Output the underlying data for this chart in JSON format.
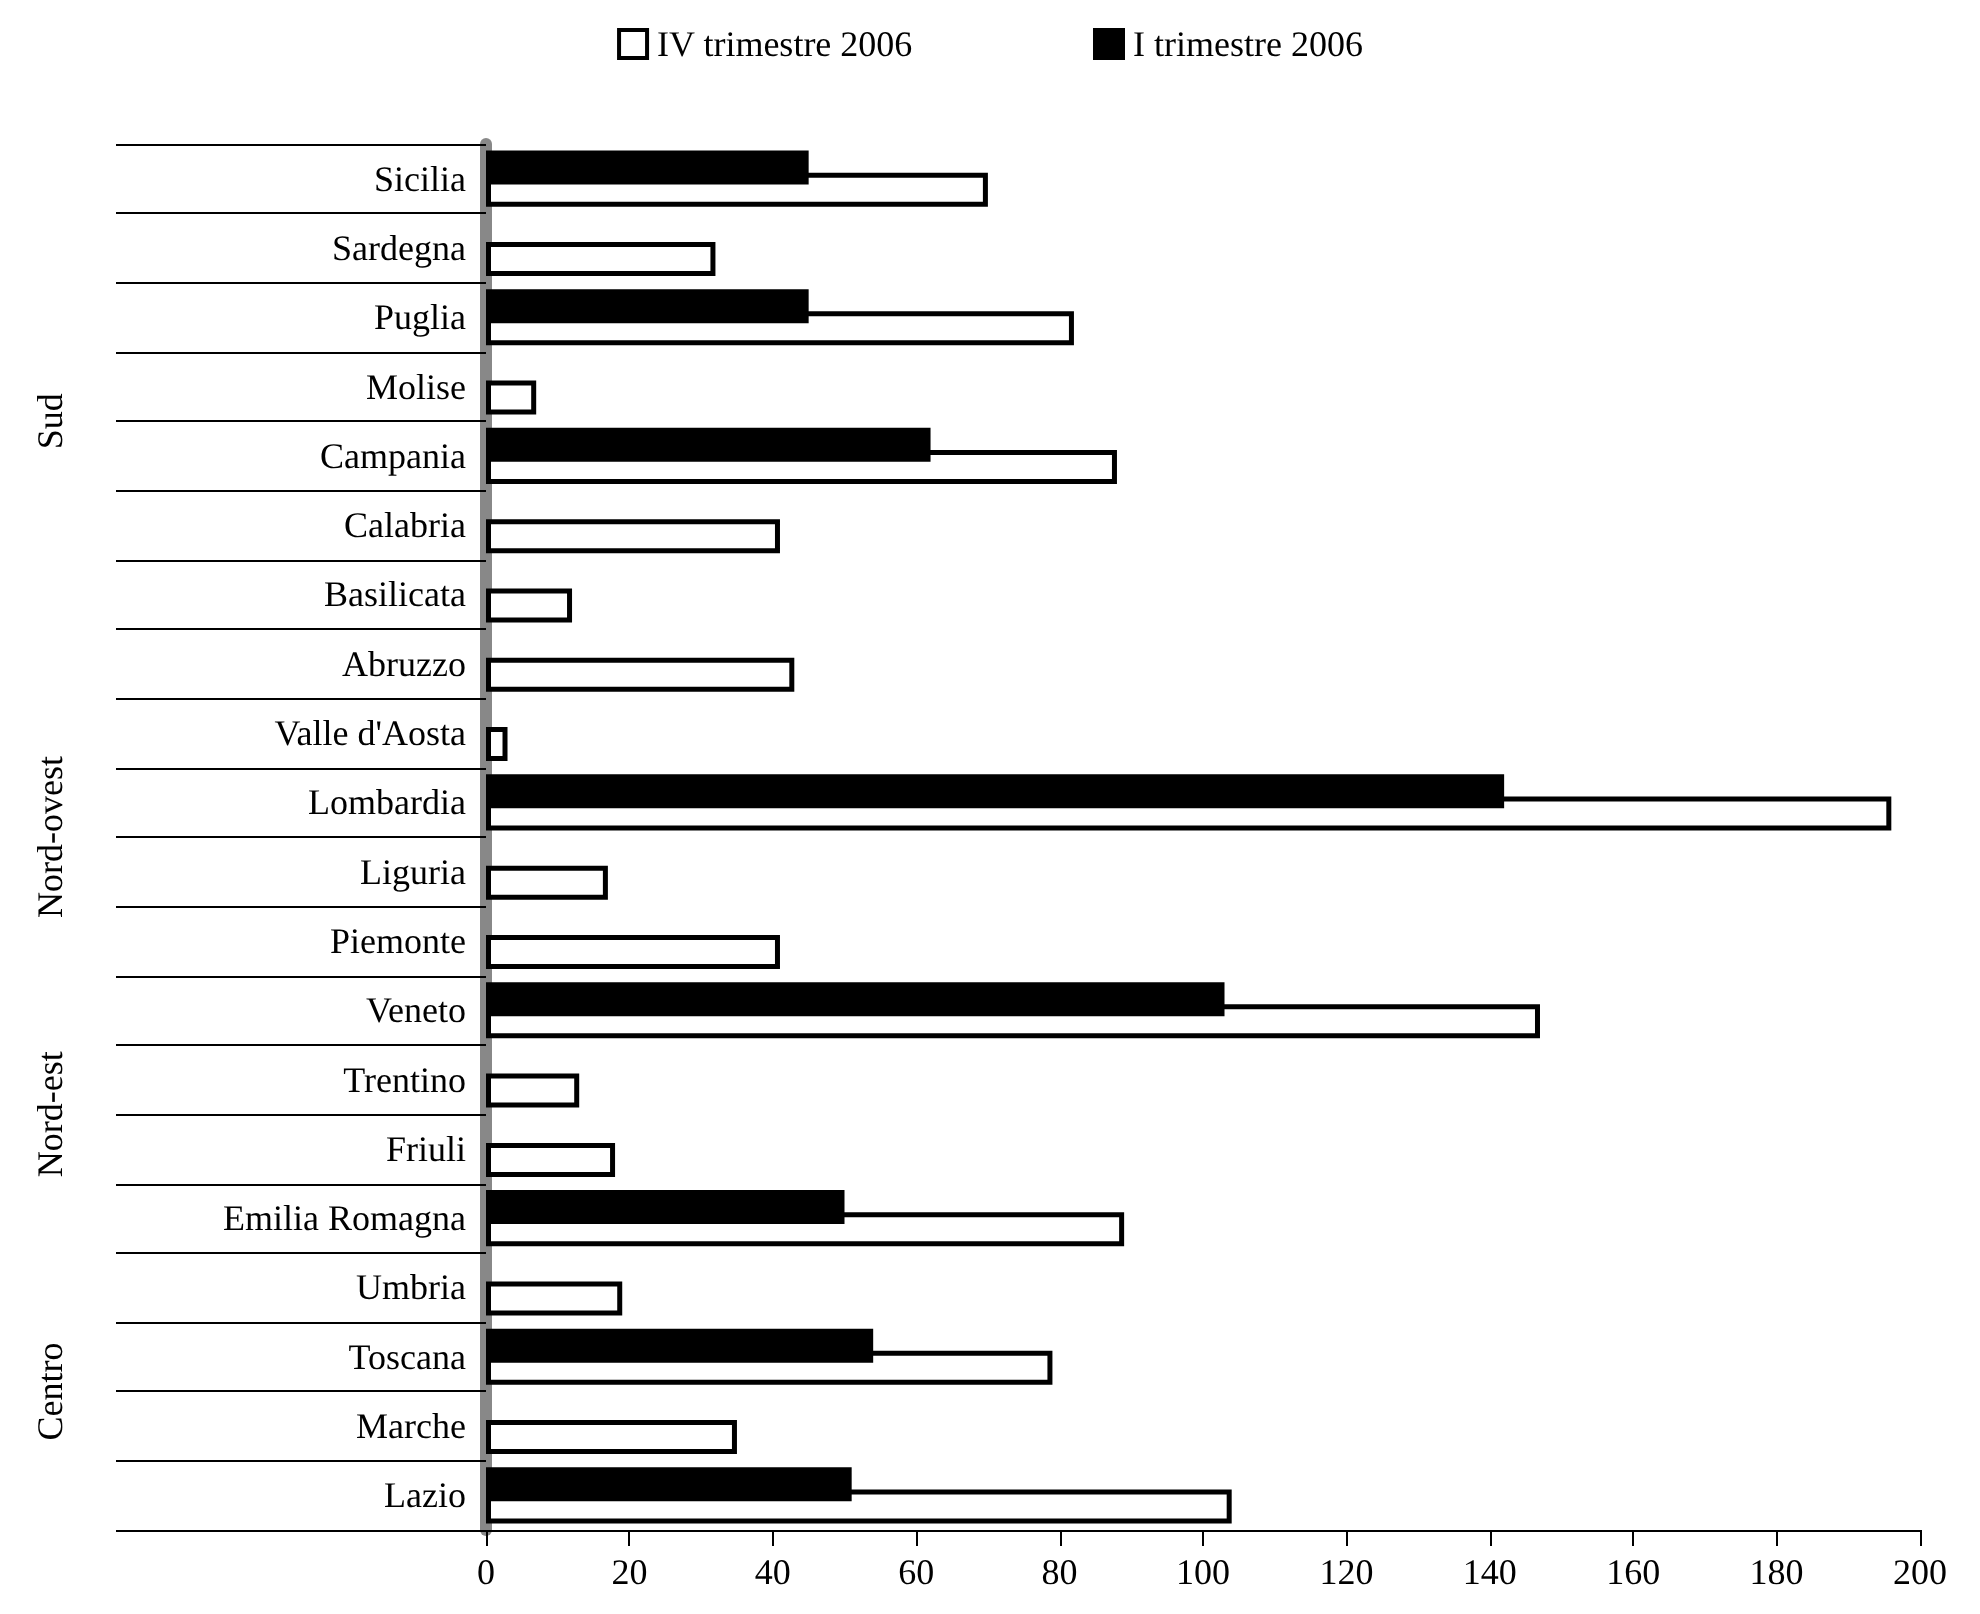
{
  "chart_data": {
    "type": "bar",
    "orientation": "horizontal",
    "categories": [
      "Sicilia",
      "Sardegna",
      "Puglia",
      "Molise",
      "Campania",
      "Calabria",
      "Basilicata",
      "Abruzzo",
      "Valle d'Aosta",
      "Lombardia",
      "Liguria",
      "Piemonte",
      "Veneto",
      "Trentino",
      "Friuli",
      "Emilia Romagna",
      "Umbria",
      "Toscana",
      "Marche",
      "Lazio"
    ],
    "series": [
      {
        "name": "IV trimestre 2006",
        "color": "#ffffff",
        "values": [
          70,
          32,
          82,
          7,
          88,
          41,
          12,
          43,
          3,
          196,
          17,
          41,
          147,
          13,
          18,
          89,
          19,
          79,
          35,
          104
        ]
      },
      {
        "name": "I trimestre 2006",
        "color": "#000000",
        "values": [
          45,
          null,
          45,
          null,
          62,
          null,
          null,
          null,
          null,
          142,
          null,
          null,
          103,
          null,
          null,
          50,
          null,
          54,
          null,
          51
        ]
      }
    ],
    "xlim": [
      0,
      200
    ],
    "xticks": [
      0,
      20,
      40,
      60,
      80,
      100,
      120,
      140,
      160,
      180,
      200
    ],
    "annotations": [
      "Sud",
      "Nord-ovest",
      "Nord-est",
      "Centro"
    ],
    "legend": "top",
    "grid": false
  }
}
